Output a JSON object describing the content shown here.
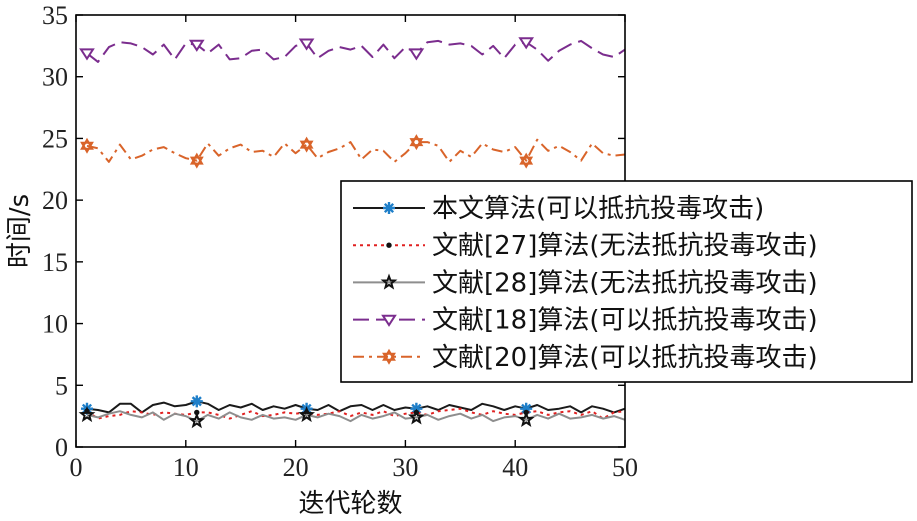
{
  "chart_data": {
    "type": "line",
    "xlabel": "迭代轮数",
    "ylabel": "时间/s",
    "xlim": [
      0,
      50
    ],
    "ylim": [
      0,
      35
    ],
    "xticks": [
      0,
      10,
      20,
      30,
      40,
      50
    ],
    "yticks": [
      0,
      5,
      10,
      15,
      20,
      25,
      30,
      35
    ],
    "grid": false,
    "legend_position": "right-middle",
    "x": [
      1,
      2,
      3,
      4,
      5,
      6,
      7,
      8,
      9,
      10,
      11,
      12,
      13,
      14,
      15,
      16,
      17,
      18,
      19,
      20,
      21,
      22,
      23,
      24,
      25,
      26,
      27,
      28,
      29,
      30,
      31,
      32,
      33,
      34,
      35,
      36,
      37,
      38,
      39,
      40,
      41,
      42,
      43,
      44,
      45,
      46,
      47,
      48,
      49,
      50
    ],
    "marker_indices": [
      0,
      10,
      20,
      30,
      40
    ],
    "series": [
      {
        "name": "本文算法(可以抵抗投毒攻击)",
        "color": "#1a1a1a",
        "dash": "solid",
        "marker": "asterisk",
        "marker_color": "#1f7fc9",
        "values": [
          3.1,
          3.0,
          2.8,
          3.5,
          3.5,
          2.8,
          3.4,
          3.6,
          3.3,
          3.4,
          3.7,
          3.5,
          3.0,
          3.4,
          3.2,
          3.5,
          3.0,
          3.3,
          3.1,
          3.4,
          3.1,
          3.0,
          3.4,
          2.9,
          3.3,
          3.4,
          3.0,
          3.4,
          3.0,
          3.2,
          3.1,
          3.3,
          3.0,
          3.4,
          3.2,
          3.0,
          3.5,
          3.3,
          3.0,
          3.3,
          3.1,
          3.4,
          3.0,
          3.1,
          3.3,
          2.8,
          3.3,
          3.1,
          2.8,
          3.1
        ]
      },
      {
        "name": "文献[27]算法(无法抵抗投毒攻击)",
        "color": "#e02020",
        "dash": "dotted",
        "marker": "dot",
        "marker_color": "#111111",
        "values": [
          2.9,
          2.3,
          2.5,
          2.6,
          2.9,
          2.8,
          2.6,
          2.8,
          2.7,
          2.6,
          2.8,
          2.8,
          2.6,
          2.3,
          2.6,
          2.9,
          2.5,
          2.6,
          2.8,
          2.7,
          2.8,
          2.6,
          2.7,
          2.9,
          2.5,
          2.8,
          2.6,
          2.9,
          2.5,
          2.7,
          2.8,
          2.6,
          2.9,
          3.0,
          3.1,
          2.8,
          2.6,
          2.9,
          2.7,
          2.6,
          2.8,
          2.9,
          2.6,
          2.8,
          2.9,
          2.6,
          2.9,
          2.3,
          2.8,
          2.9
        ]
      },
      {
        "name": "文献[28]算法(无法抵抗投毒攻击)",
        "color": "#8e8e8e",
        "dash": "solid",
        "marker": "star",
        "marker_color": "#111111",
        "values": [
          2.6,
          2.4,
          2.7,
          2.9,
          2.6,
          2.4,
          2.8,
          2.2,
          2.7,
          2.5,
          2.1,
          2.6,
          2.3,
          2.8,
          2.4,
          2.2,
          2.6,
          2.3,
          2.4,
          2.2,
          2.6,
          2.4,
          2.7,
          2.5,
          2.1,
          2.6,
          2.3,
          2.5,
          2.8,
          2.3,
          2.4,
          2.6,
          2.2,
          2.5,
          2.7,
          2.3,
          2.6,
          2.1,
          2.4,
          2.5,
          2.2,
          2.6,
          2.3,
          2.7,
          2.3,
          2.4,
          2.6,
          2.3,
          2.5,
          2.2
        ]
      },
      {
        "name": "文献[18]算法(可以抵抗投毒攻击)",
        "color": "#7b2d8e",
        "dash": "longdash",
        "marker": "triangle-down",
        "marker_color": "#7b2d8e",
        "values": [
          31.9,
          31.2,
          32.4,
          32.8,
          32.7,
          32.4,
          31.8,
          32.6,
          31.4,
          32.7,
          32.6,
          31.9,
          32.6,
          31.4,
          31.5,
          32.1,
          32.2,
          31.4,
          31.6,
          32.5,
          32.7,
          31.5,
          32.1,
          32.4,
          32.2,
          32.5,
          31.6,
          32.6,
          31.5,
          32.4,
          31.9,
          32.8,
          32.9,
          32.6,
          32.7,
          32.5,
          31.8,
          32.5,
          31.5,
          32.6,
          32.8,
          32.2,
          31.3,
          32.1,
          32.6,
          32.9,
          32.3,
          31.8,
          31.6,
          32.2
        ]
      },
      {
        "name": "文献[20]算法(可以抵抗投毒攻击)",
        "color": "#d9642a",
        "dash": "dashdot",
        "marker": "hexagram",
        "marker_color": "#d9642a",
        "values": [
          24.4,
          24.2,
          23.1,
          24.5,
          23.3,
          23.6,
          24.1,
          24.3,
          23.8,
          23.4,
          23.2,
          24.6,
          23.6,
          24.2,
          24.5,
          23.9,
          24.0,
          23.5,
          24.6,
          23.8,
          24.5,
          23.4,
          23.9,
          24.2,
          24.7,
          23.3,
          24.1,
          24.0,
          23.1,
          23.8,
          24.7,
          24.7,
          24.4,
          23.1,
          24.0,
          23.5,
          24.6,
          24.1,
          23.9,
          24.3,
          23.2,
          24.9,
          24.0,
          24.4,
          23.9,
          23.2,
          24.6,
          23.8,
          23.6,
          23.7
        ]
      }
    ]
  }
}
